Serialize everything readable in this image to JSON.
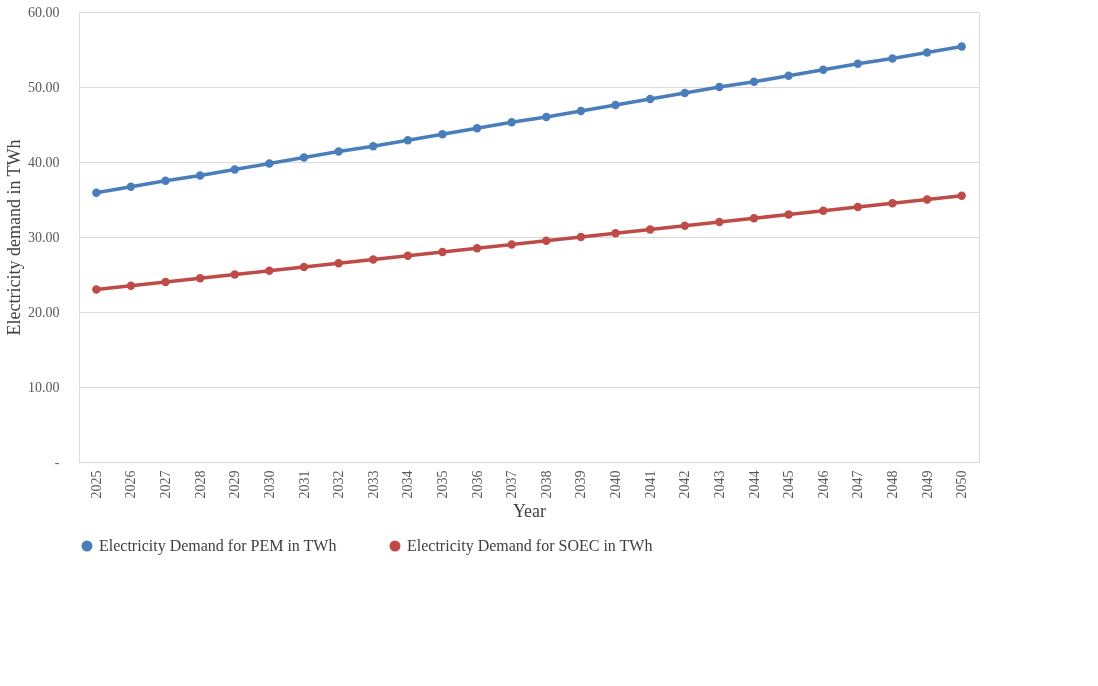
{
  "chart_data": {
    "type": "line",
    "xlabel": "Year",
    "ylabel": "Electricity demand in TWh",
    "categories": [
      "2025",
      "2026",
      "2027",
      "2028",
      "2029",
      "2030",
      "2031",
      "2032",
      "2033",
      "2034",
      "2035",
      "2036",
      "2037",
      "2038",
      "2039",
      "2040",
      "2041",
      "2042",
      "2043",
      "2044",
      "2045",
      "2046",
      "2047",
      "2048",
      "2049",
      "2050"
    ],
    "series": [
      {
        "name": "Electricity Demand for PEM in TWh",
        "color": "#4a7ebb",
        "values": [
          35.9,
          36.7,
          37.5,
          38.2,
          39.0,
          39.8,
          40.6,
          41.4,
          42.1,
          42.9,
          43.7,
          44.5,
          45.3,
          46.0,
          46.8,
          47.6,
          48.4,
          49.2,
          50.0,
          50.7,
          51.5,
          52.3,
          53.1,
          53.8,
          54.6,
          55.4
        ]
      },
      {
        "name": "Electricity Demand for SOEC in TWh",
        "color": "#be4b48",
        "values": [
          23.0,
          23.5,
          24.0,
          24.5,
          25.0,
          25.5,
          26.0,
          26.5,
          27.0,
          27.5,
          28.0,
          28.5,
          29.0,
          29.5,
          30.0,
          30.5,
          31.0,
          31.5,
          32.0,
          32.5,
          33.0,
          33.5,
          34.0,
          34.5,
          35.0,
          35.5
        ]
      }
    ],
    "ylim": [
      0,
      60
    ],
    "yticks": [
      {
        "value": 0,
        "label": "-"
      },
      {
        "value": 10,
        "label": "10.00"
      },
      {
        "value": 20,
        "label": "20.00"
      },
      {
        "value": 30,
        "label": "30.00"
      },
      {
        "value": 40,
        "label": "40.00"
      },
      {
        "value": 50,
        "label": "50.00"
      },
      {
        "value": 60,
        "label": "60.00"
      }
    ],
    "grid": "y",
    "legend": "bottom",
    "marker": "circle",
    "line_style": "solid"
  }
}
